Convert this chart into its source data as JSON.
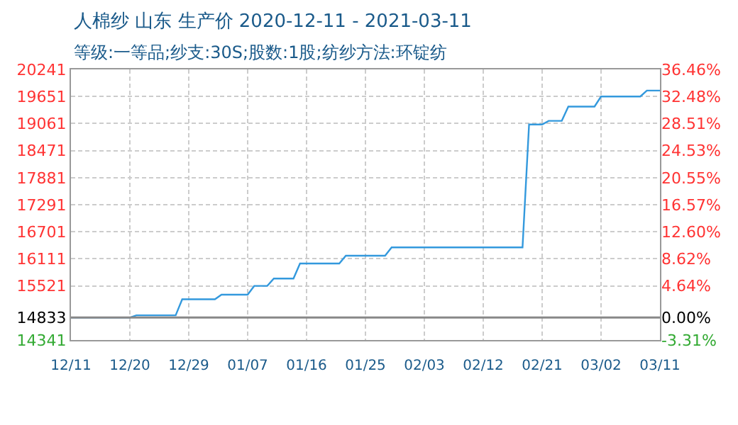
{
  "chart_data": {
    "type": "line",
    "title": "人棉纱 山东 生产价 2020-12-11 - 2021-03-11",
    "subtitle": "等级:一等品;纱支:30S;股数:1股;纺纱方法:环锭纺",
    "x": [
      "2020-12-11",
      "2020-12-20",
      "2020-12-21",
      "2020-12-27",
      "2020-12-28",
      "2021-01-02",
      "2021-01-03",
      "2021-01-07",
      "2021-01-08",
      "2021-01-10",
      "2021-01-11",
      "2021-01-14",
      "2021-01-15",
      "2021-01-21",
      "2021-01-22",
      "2021-01-28",
      "2021-01-29",
      "2021-02-18",
      "2021-02-19",
      "2021-02-21",
      "2021-02-22",
      "2021-02-24",
      "2021-02-25",
      "2021-03-01",
      "2021-03-02",
      "2021-03-08",
      "2021-03-09",
      "2021-03-11"
    ],
    "series": [
      {
        "color": "#3399dd",
        "values": [
          14830,
          14830,
          14880,
          14880,
          15230,
          15230,
          15330,
          15330,
          15520,
          15520,
          15680,
          15680,
          16010,
          16010,
          16180,
          16180,
          16360,
          16360,
          19040,
          19040,
          19120,
          19120,
          19430,
          19430,
          19650,
          19650,
          19780,
          19780
        ]
      }
    ],
    "xlim": [
      "2020-12-11",
      "2021-03-11"
    ],
    "xticks": [
      {
        "value": "2020-12-11",
        "label": "12/11"
      },
      {
        "value": "2020-12-20",
        "label": "12/20"
      },
      {
        "value": "2020-12-29",
        "label": "12/29"
      },
      {
        "value": "2021-01-07",
        "label": "01/07"
      },
      {
        "value": "2021-01-16",
        "label": "01/16"
      },
      {
        "value": "2021-01-25",
        "label": "01/25"
      },
      {
        "value": "2021-02-03",
        "label": "02/03"
      },
      {
        "value": "2021-02-12",
        "label": "02/12"
      },
      {
        "value": "2021-02-21",
        "label": "02/21"
      },
      {
        "value": "2021-03-02",
        "label": "03/02"
      },
      {
        "value": "2021-03-11",
        "label": "03/11"
      }
    ],
    "ylim": [
      14341,
      20241
    ],
    "yticks": [
      14341,
      14833,
      15521,
      16111,
      16701,
      17291,
      17881,
      18471,
      19061,
      19651,
      20241
    ],
    "y2lim": [
      -3.31,
      36.46
    ],
    "y2ticks": [
      {
        "value": -3.31,
        "label": "-3.31%"
      },
      {
        "value": 0,
        "label": "0.00%"
      },
      {
        "value": 4.64,
        "label": "4.64%"
      },
      {
        "value": 8.62,
        "label": "8.62%"
      },
      {
        "value": 12.6,
        "label": "12.60%"
      },
      {
        "value": 16.57,
        "label": "16.57%"
      },
      {
        "value": 20.55,
        "label": "20.55%"
      },
      {
        "value": 24.53,
        "label": "24.53%"
      },
      {
        "value": 28.51,
        "label": "28.51%"
      },
      {
        "value": 32.48,
        "label": "32.48%"
      },
      {
        "value": 36.46,
        "label": "36.46%"
      }
    ],
    "ref_lines": [
      {
        "axis": "y",
        "value": 14833,
        "color": "#888888"
      }
    ],
    "grid": true,
    "marker": "none",
    "line_style": "solid"
  }
}
